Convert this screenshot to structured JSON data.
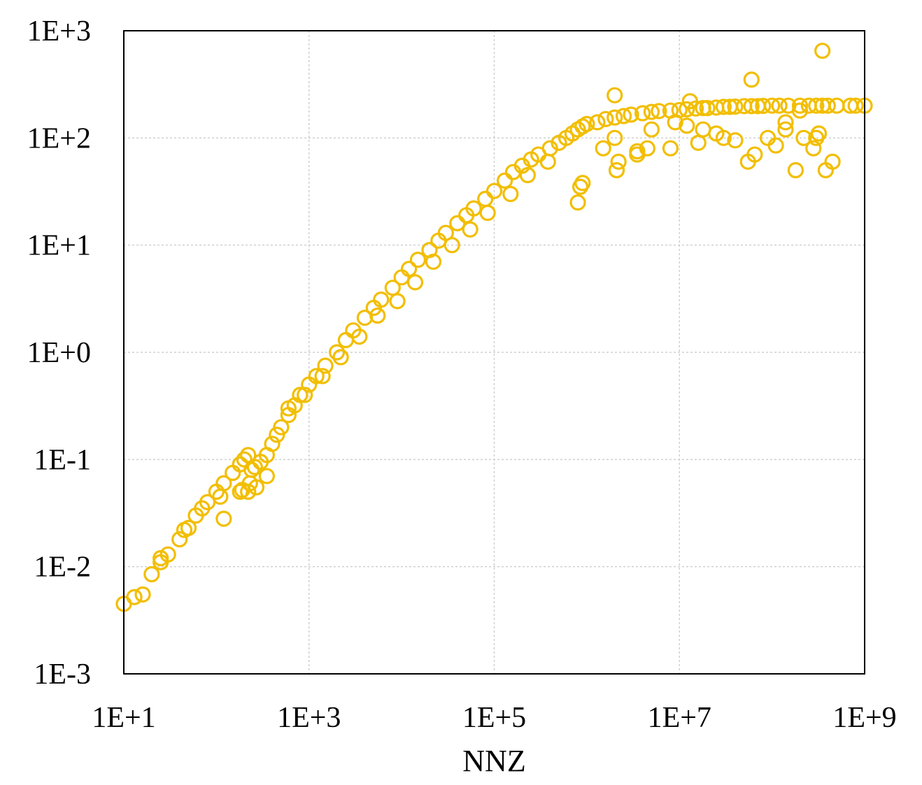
{
  "chart_data": {
    "type": "scatter",
    "title": "",
    "xlabel": "NNZ",
    "ylabel": "",
    "x_scale": "log",
    "y_scale": "log",
    "xlim": [
      10,
      1000000000
    ],
    "ylim": [
      0.001,
      1000
    ],
    "x_ticks": [
      "1E+1",
      "1E+3",
      "1E+5",
      "1E+7",
      "1E+9"
    ],
    "x_tick_values": [
      10,
      1000,
      100000,
      10000000,
      1000000000
    ],
    "y_ticks": [
      "1E-3",
      "1E-2",
      "1E-1",
      "1E+0",
      "1E+1",
      "1E+2",
      "1E+3"
    ],
    "y_tick_values": [
      0.001,
      0.01,
      0.1,
      1,
      10,
      100,
      1000
    ],
    "grid": true,
    "legend": "none",
    "color": "#F2BE00",
    "series": [
      {
        "x": [
          10,
          13,
          16,
          20,
          25,
          30,
          40,
          50,
          60,
          80,
          100,
          120,
          150,
          180,
          200,
          220,
          240,
          260,
          300,
          350,
          400,
          450,
          500,
          600,
          700,
          800,
          1000,
          1200,
          1500,
          2000,
          2500,
          3000,
          4000,
          5000,
          6000,
          8000,
          10000,
          12000,
          15000,
          20000,
          25000,
          30000,
          40000,
          50000,
          60000,
          80000,
          100000,
          130000,
          160000,
          200000,
          250000,
          300000,
          400000,
          500000,
          600000,
          700000,
          800000,
          900000,
          1000000,
          1300000,
          1600000,
          2000000,
          2500000,
          3000000,
          4000000,
          5000000,
          6000000,
          8000000,
          10000000,
          12000000,
          15000000,
          18000000,
          20000000,
          25000000,
          30000000,
          35000000,
          40000000,
          50000000,
          60000000,
          70000000,
          80000000,
          100000000,
          120000000,
          150000000,
          200000000,
          250000000,
          300000000,
          350000000,
          400000000,
          500000000,
          700000000,
          800000000,
          1000000000,
          25,
          45,
          70,
          110,
          190,
          230,
          270,
          350,
          600,
          900,
          1400,
          2200,
          3500,
          5500,
          9000,
          14000,
          22000,
          35000,
          55000,
          85000,
          150000,
          230000,
          380000,
          800000,
          850000,
          900000,
          1500000,
          2000000,
          2200000,
          3500000,
          5000000,
          8000000,
          12000000,
          16000000,
          25000000,
          40000000,
          55000000,
          65000000,
          90000000,
          110000000,
          140000000,
          180000000,
          220000000,
          280000000,
          320000000,
          380000000,
          450000000,
          120,
          180,
          220,
          2000000,
          2100000,
          3500000,
          4500000,
          9000000,
          13000000,
          18000000,
          30000000,
          60000000,
          140000000,
          200000000,
          300000000,
          350000000
        ],
        "y": [
          0.0045,
          0.0052,
          0.0055,
          0.0085,
          0.011,
          0.013,
          0.018,
          0.023,
          0.03,
          0.04,
          0.05,
          0.06,
          0.075,
          0.09,
          0.1,
          0.11,
          0.08,
          0.085,
          0.095,
          0.11,
          0.14,
          0.17,
          0.2,
          0.26,
          0.32,
          0.4,
          0.5,
          0.6,
          0.75,
          1.0,
          1.3,
          1.6,
          2.1,
          2.6,
          3.1,
          4.0,
          5.0,
          6.0,
          7.3,
          9.0,
          11,
          13,
          16,
          19,
          22,
          27,
          32,
          40,
          48,
          55,
          63,
          70,
          80,
          90,
          100,
          110,
          120,
          128,
          135,
          140,
          150,
          155,
          160,
          165,
          170,
          175,
          178,
          180,
          182,
          185,
          188,
          190,
          190,
          192,
          195,
          195,
          196,
          198,
          198,
          198,
          199,
          200,
          200,
          200,
          200,
          200,
          200,
          200,
          200,
          200,
          200,
          200,
          200,
          0.012,
          0.022,
          0.035,
          0.045,
          0.052,
          0.06,
          0.055,
          0.07,
          0.3,
          0.4,
          0.6,
          0.9,
          1.4,
          2.2,
          3.0,
          4.5,
          7.0,
          10,
          14,
          20,
          30,
          45,
          60,
          25,
          35,
          38,
          80,
          100,
          60,
          75,
          120,
          80,
          130,
          90,
          110,
          95,
          60,
          70,
          100,
          85,
          120,
          50,
          100,
          80,
          110,
          50,
          60,
          0.028,
          0.05,
          0.05,
          250,
          50,
          70,
          80,
          140,
          220,
          120,
          100,
          350,
          140,
          180,
          100,
          650
        ]
      }
    ]
  }
}
